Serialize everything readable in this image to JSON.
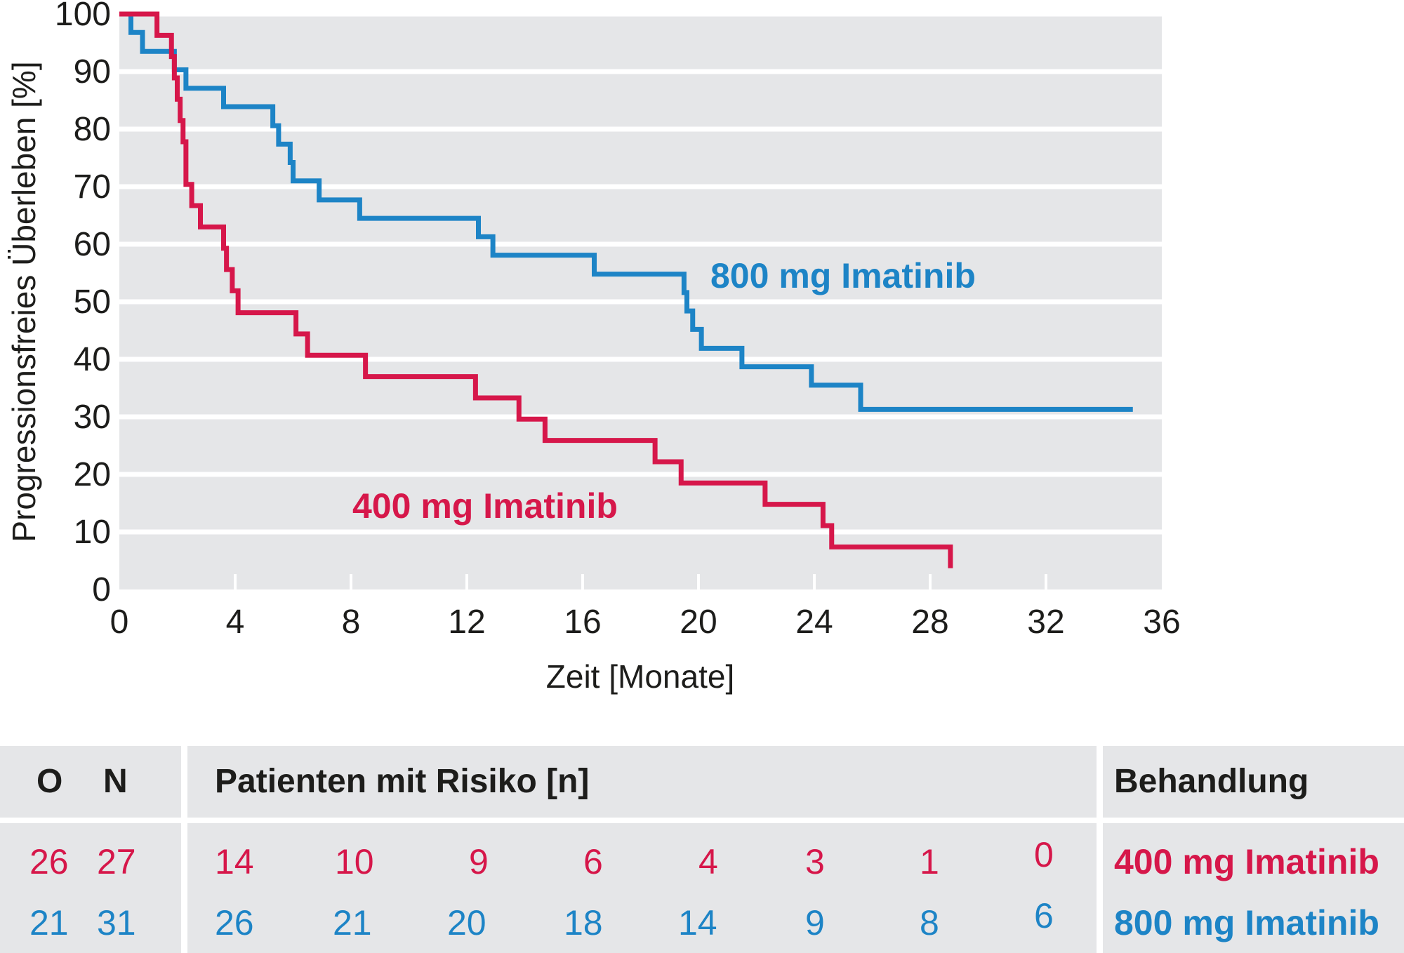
{
  "colors": {
    "red": "#d6174a",
    "blue": "#1d84c6",
    "plot_bg": "#e5e6e8",
    "grid": "#ffffff",
    "text": "#1d1d1b"
  },
  "chart_data": {
    "type": "line",
    "step": true,
    "xlabel": "Zeit [Monate]",
    "ylabel": "Progressionsfreies Überleben [%]",
    "xlim": [
      0,
      36
    ],
    "ylim": [
      0,
      100
    ],
    "xticks": [
      "0",
      "4",
      "8",
      "12",
      "16",
      "20",
      "24",
      "28",
      "32",
      "36"
    ],
    "yticks": [
      "0",
      "10",
      "20",
      "30",
      "40",
      "50",
      "60",
      "70",
      "80",
      "90",
      "100"
    ],
    "grid": true,
    "series": [
      {
        "name": "800 mg Imatinib",
        "color": "#1d84c6",
        "x": [
          0,
          0.4,
          0.8,
          1.8,
          1.9,
          2.3,
          3.6,
          5.3,
          5.5,
          5.9,
          6.0,
          6.9,
          8.3,
          12.4,
          12.9,
          16.4,
          19.5,
          19.6,
          19.8,
          20.1,
          21.5,
          23.9,
          25.6,
          35.0
        ],
        "y": [
          100,
          96.8,
          93.5,
          93.5,
          90.3,
          87.1,
          83.9,
          80.6,
          77.4,
          74.2,
          71.0,
          67.7,
          64.5,
          61.3,
          58.1,
          54.8,
          51.6,
          48.4,
          45.2,
          41.9,
          38.7,
          35.5,
          31.3,
          31.3
        ]
      },
      {
        "name": "400 mg Imatinib",
        "color": "#d6174a",
        "x": [
          0,
          1.3,
          1.8,
          1.9,
          2.0,
          2.1,
          2.2,
          2.3,
          2.5,
          2.8,
          3.6,
          3.7,
          3.9,
          4.1,
          6.1,
          6.5,
          8.5,
          12.3,
          13.8,
          14.7,
          18.5,
          19.4,
          22.3,
          24.3,
          24.6,
          28.7
        ],
        "y": [
          100,
          96.3,
          92.6,
          88.9,
          85.2,
          81.5,
          77.8,
          70.4,
          66.7,
          63.0,
          59.3,
          55.6,
          51.9,
          48.1,
          44.4,
          40.7,
          37.0,
          33.3,
          29.6,
          25.9,
          22.2,
          18.5,
          14.8,
          11.1,
          7.4,
          3.7
        ]
      }
    ],
    "annotations": [
      {
        "text": "800 mg Imatinib",
        "series": "800 mg Imatinib"
      },
      {
        "text": "400 mg Imatinib",
        "series": "400 mg Imatinib"
      }
    ]
  },
  "risk_table": {
    "headers": {
      "o": "O",
      "n": "N",
      "patients": "Patienten mit Risiko [n]",
      "treatment": "Behandlung"
    },
    "rows": [
      {
        "color": "red",
        "o": "26",
        "n": "27",
        "counts": [
          "14",
          "10",
          "9",
          "6",
          "4",
          "3",
          "1",
          "0"
        ],
        "treatment": "400 mg Imatinib"
      },
      {
        "color": "blue",
        "o": "21",
        "n": "31",
        "counts": [
          "26",
          "21",
          "20",
          "18",
          "14",
          "9",
          "8",
          "6"
        ],
        "treatment": "800 mg Imatinib"
      }
    ]
  }
}
